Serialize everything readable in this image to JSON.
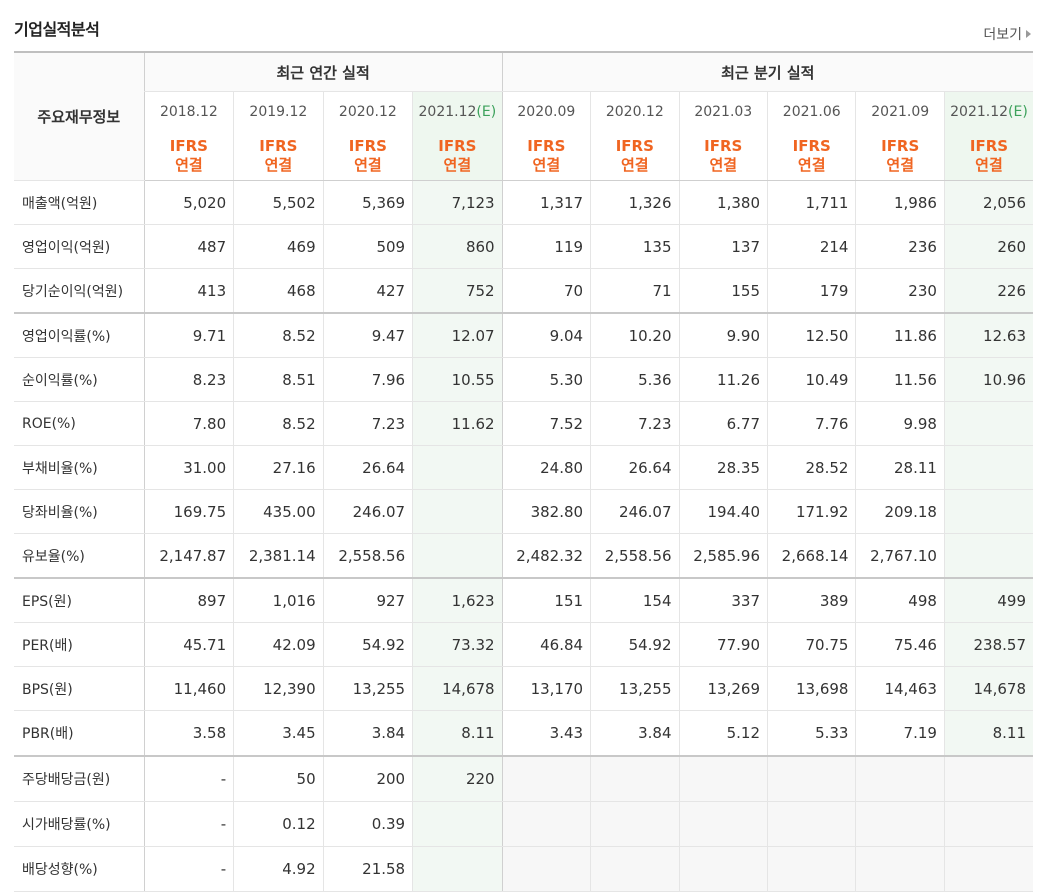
{
  "title": "기업실적분석",
  "more_label": "더보기",
  "header": {
    "row_label": "주요재무정보",
    "annual_group": "최근 연간 실적",
    "quarter_group": "최근 분기 실적",
    "periods": [
      {
        "label": "2018.12",
        "est": ""
      },
      {
        "label": "2019.12",
        "est": ""
      },
      {
        "label": "2020.12",
        "est": ""
      },
      {
        "label": "2021.12",
        "est": "(E)"
      },
      {
        "label": "2020.09",
        "est": ""
      },
      {
        "label": "2020.12",
        "est": ""
      },
      {
        "label": "2021.03",
        "est": ""
      },
      {
        "label": "2021.06",
        "est": ""
      },
      {
        "label": "2021.09",
        "est": ""
      },
      {
        "label": "2021.12",
        "est": "(E)"
      }
    ],
    "ifrs_line1": "IFRS",
    "ifrs_line2": "연결"
  },
  "rows": [
    {
      "label": "매출액(억원)",
      "values": [
        "5,020",
        "5,502",
        "5,369",
        "7,123",
        "1,317",
        "1,326",
        "1,380",
        "1,711",
        "1,986",
        "2,056"
      ]
    },
    {
      "label": "영업이익(억원)",
      "values": [
        "487",
        "469",
        "509",
        "860",
        "119",
        "135",
        "137",
        "214",
        "236",
        "260"
      ]
    },
    {
      "label": "당기순이익(억원)",
      "values": [
        "413",
        "468",
        "427",
        "752",
        "70",
        "71",
        "155",
        "179",
        "230",
        "226"
      ]
    },
    {
      "label": "영업이익률(%)",
      "values": [
        "9.71",
        "8.52",
        "9.47",
        "12.07",
        "9.04",
        "10.20",
        "9.90",
        "12.50",
        "11.86",
        "12.63"
      ]
    },
    {
      "label": "순이익률(%)",
      "values": [
        "8.23",
        "8.51",
        "7.96",
        "10.55",
        "5.30",
        "5.36",
        "11.26",
        "10.49",
        "11.56",
        "10.96"
      ]
    },
    {
      "label": "ROE(%)",
      "values": [
        "7.80",
        "8.52",
        "7.23",
        "11.62",
        "7.52",
        "7.23",
        "6.77",
        "7.76",
        "9.98",
        ""
      ]
    },
    {
      "label": "부채비율(%)",
      "values": [
        "31.00",
        "27.16",
        "26.64",
        "",
        "24.80",
        "26.64",
        "28.35",
        "28.52",
        "28.11",
        ""
      ]
    },
    {
      "label": "당좌비율(%)",
      "values": [
        "169.75",
        "435.00",
        "246.07",
        "",
        "382.80",
        "246.07",
        "194.40",
        "171.92",
        "209.18",
        ""
      ]
    },
    {
      "label": "유보율(%)",
      "values": [
        "2,147.87",
        "2,381.14",
        "2,558.56",
        "",
        "2,482.32",
        "2,558.56",
        "2,585.96",
        "2,668.14",
        "2,767.10",
        ""
      ]
    },
    {
      "label": "EPS(원)",
      "values": [
        "897",
        "1,016",
        "927",
        "1,623",
        "151",
        "154",
        "337",
        "389",
        "498",
        "499"
      ]
    },
    {
      "label": "PER(배)",
      "values": [
        "45.71",
        "42.09",
        "54.92",
        "73.32",
        "46.84",
        "54.92",
        "77.90",
        "70.75",
        "75.46",
        "238.57"
      ]
    },
    {
      "label": "BPS(원)",
      "values": [
        "11,460",
        "12,390",
        "13,255",
        "14,678",
        "13,170",
        "13,255",
        "13,269",
        "13,698",
        "14,463",
        "14,678"
      ]
    },
    {
      "label": "PBR(배)",
      "values": [
        "3.58",
        "3.45",
        "3.84",
        "8.11",
        "3.43",
        "3.84",
        "5.12",
        "5.33",
        "7.19",
        "8.11"
      ]
    },
    {
      "label": "주당배당금(원)",
      "values": [
        "-",
        "50",
        "200",
        "220",
        "",
        "",
        "",
        "",
        "",
        ""
      ]
    },
    {
      "label": "시가배당률(%)",
      "values": [
        "-",
        "0.12",
        "0.39",
        "",
        "",
        "",
        "",
        "",
        "",
        ""
      ]
    },
    {
      "label": "배당성향(%)",
      "values": [
        "-",
        "4.92",
        "21.58",
        "",
        "",
        "",
        "",
        "",
        "",
        ""
      ]
    }
  ]
}
